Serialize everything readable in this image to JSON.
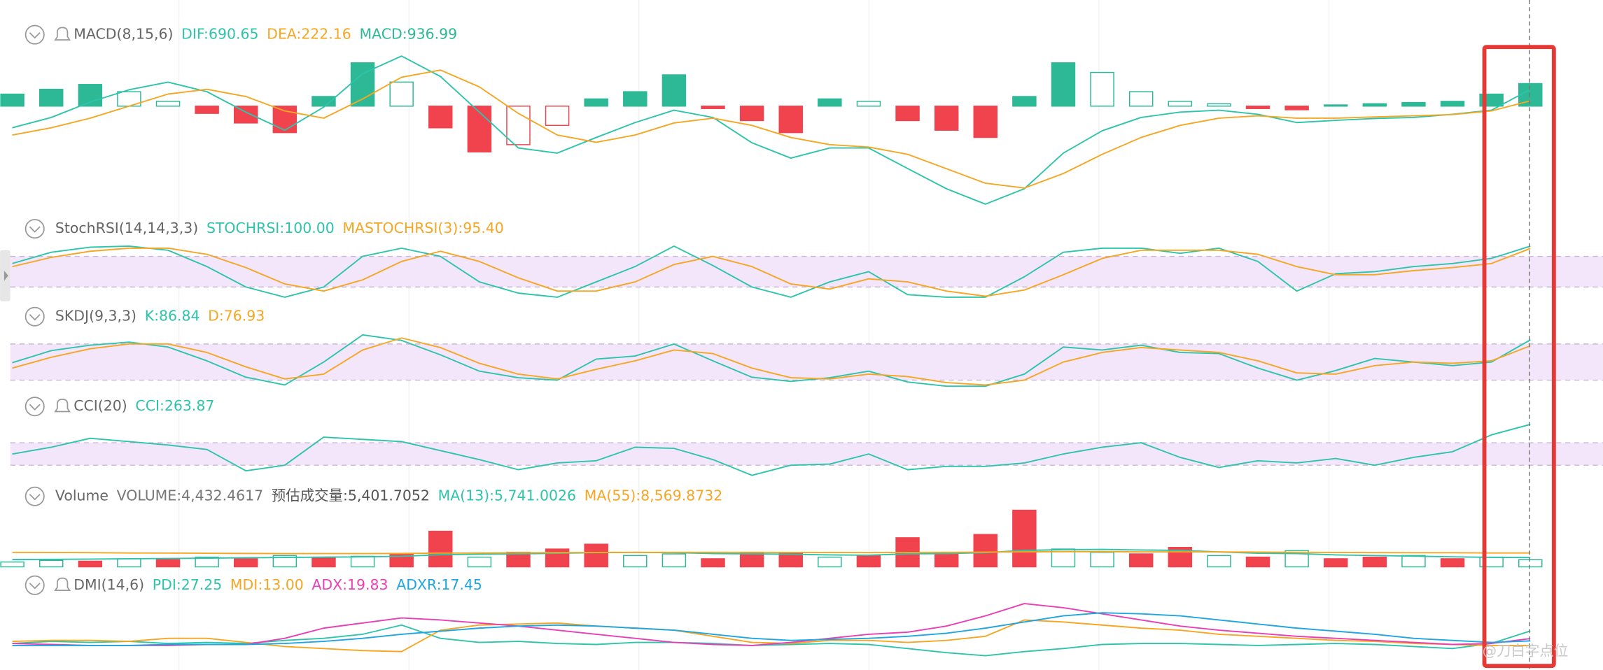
{
  "chart_data": [
    {
      "type": "combo",
      "title": "MACD(8,15,6)",
      "ylim": [
        -4500,
        2500
      ],
      "series": [
        {
          "name": "DIF:690.65",
          "color": "#2ec4ab",
          "values": [
            -900,
            -470,
            170,
            680,
            1000,
            600,
            -250,
            -1000,
            -40,
            1350,
            2080,
            1230,
            -250,
            -1740,
            -1950,
            -1300,
            -680,
            -170,
            -470,
            -1520,
            -2160,
            -1740,
            -1740,
            -2590,
            -3430,
            -4070,
            -3430,
            -1950,
            -1020,
            -470,
            -250,
            -170,
            -340,
            -680,
            -590,
            -510,
            -470,
            -340,
            -170,
            690.65
          ]
        },
        {
          "name": "DEA:222.16",
          "color": "#f5a623",
          "values": [
            -1200,
            -900,
            -500,
            0,
            500,
            700,
            400,
            -200,
            -500,
            300,
            1200,
            1500,
            800,
            -300,
            -1200,
            -1500,
            -1200,
            -700,
            -500,
            -800,
            -1300,
            -1600,
            -1700,
            -2000,
            -2600,
            -3200,
            -3400,
            -2800,
            -2000,
            -1300,
            -800,
            -500,
            -400,
            -500,
            -500,
            -450,
            -400,
            -350,
            -200,
            222.16
          ]
        },
        {
          "name": "MACD:936.99",
          "type": "bar",
          "color": "#2db896",
          "down_color": "#f0434e",
          "values": [
            500,
            700,
            900,
            600,
            200,
            -300,
            -700,
            -1100,
            400,
            1800,
            1000,
            -900,
            -1900,
            -1600,
            -800,
            300,
            600,
            1300,
            -100,
            -600,
            -1100,
            300,
            200,
            -600,
            -1000,
            -1300,
            400,
            1800,
            1400,
            600,
            200,
            100,
            -100,
            -150,
            50,
            100,
            150,
            200,
            500,
            936.99
          ]
        }
      ]
    },
    {
      "type": "line",
      "title": "StochRSI(14,14,3,3)",
      "ylim": [
        0,
        100
      ],
      "band": [
        20,
        80
      ],
      "series": [
        {
          "name": "STOCHRSI:100.00",
          "color": "#2ec4ab",
          "values": [
            66,
            88,
            98,
            100,
            92,
            60,
            20,
            0,
            20,
            80,
            96,
            80,
            30,
            8,
            0,
            30,
            60,
            100,
            62,
            20,
            0,
            30,
            50,
            5,
            0,
            0,
            40,
            88,
            96,
            96,
            86,
            96,
            70,
            12,
            46,
            50,
            60,
            66,
            76,
            100
          ]
        },
        {
          "name": "MASTOCHRSI(3):95.40",
          "color": "#f5a623",
          "values": [
            60,
            78,
            90,
            96,
            96,
            84,
            58,
            26,
            12,
            34,
            70,
            90,
            70,
            38,
            12,
            12,
            30,
            64,
            80,
            60,
            26,
            16,
            36,
            30,
            12,
            2,
            14,
            44,
            76,
            92,
            92,
            92,
            84,
            60,
            44,
            44,
            52,
            58,
            66,
            95.4
          ]
        }
      ]
    },
    {
      "type": "line",
      "title": "SKDJ(9,3,3)",
      "ylim": [
        0,
        100
      ],
      "band": [
        20,
        80
      ],
      "series": [
        {
          "name": "K:86.84",
          "color": "#2ec4ab",
          "values": [
            49,
            69,
            78,
            83,
            75,
            52,
            25,
            12,
            50,
            95,
            86,
            62,
            35,
            24,
            20,
            55,
            60,
            80,
            52,
            25,
            18,
            24,
            35,
            17,
            10,
            10,
            30,
            75,
            70,
            78,
            66,
            64,
            40,
            20,
            36,
            56,
            50,
            44,
            50,
            86.84
          ]
        },
        {
          "name": "D:76.93",
          "color": "#f5a623",
          "values": [
            40,
            58,
            72,
            80,
            80,
            66,
            42,
            22,
            30,
            70,
            90,
            74,
            48,
            30,
            22,
            38,
            52,
            70,
            64,
            40,
            24,
            22,
            30,
            26,
            16,
            12,
            20,
            50,
            66,
            74,
            70,
            66,
            52,
            32,
            30,
            44,
            50,
            48,
            52,
            76.93
          ]
        }
      ]
    },
    {
      "type": "line",
      "title": "CCI(20)",
      "ylim": [
        -250,
        350
      ],
      "band": [
        -100,
        100
      ],
      "series": [
        {
          "name": "CCI:263.87",
          "color": "#2ec4ab",
          "values": [
            0,
            60,
            140,
            110,
            80,
            40,
            -150,
            -100,
            150,
            130,
            110,
            30,
            -50,
            -140,
            -80,
            -60,
            60,
            50,
            -50,
            -190,
            -100,
            -90,
            0,
            -140,
            -110,
            -110,
            -80,
            0,
            60,
            100,
            -30,
            -120,
            -60,
            -80,
            -40,
            -100,
            -30,
            20,
            170,
            263.87
          ]
        }
      ]
    },
    {
      "type": "combo",
      "title": "Volume",
      "ylim": [
        0,
        36000
      ],
      "annotation": "预估成交量:5,401.7052",
      "hollow_color": "#2db896",
      "series": [
        {
          "name": "VOLUME:4,432.4617",
          "type": "bar",
          "values": [
            3000,
            4000,
            3500,
            5000,
            4500,
            6000,
            5000,
            7000,
            5500,
            6500,
            8000,
            22000,
            6000,
            9000,
            11000,
            14000,
            7000,
            8000,
            5000,
            9000,
            8500,
            6000,
            7000,
            18000,
            9000,
            20000,
            35000,
            11000,
            9000,
            8000,
            12000,
            7000,
            6000,
            10000,
            5000,
            6000,
            7000,
            5000,
            6000,
            4432.4617
          ],
          "colors": [
            "#2db896",
            "#2db896",
            "#f0434e",
            "#2db896",
            "#f0434e",
            "#2db896",
            "#f0434e",
            "#2db896",
            "#f0434e",
            "#2db896",
            "#f0434e",
            "#f0434e",
            "#2db896",
            "#f0434e",
            "#f0434e",
            "#f0434e",
            "#2db896",
            "#2db896",
            "#f0434e",
            "#f0434e",
            "#f0434e",
            "#2db896",
            "#f0434e",
            "#f0434e",
            "#f0434e",
            "#f0434e",
            "#f0434e",
            "#2db896",
            "#2db896",
            "#f0434e",
            "#f0434e",
            "#2db896",
            "#f0434e",
            "#2db896",
            "#f0434e",
            "#f0434e",
            "#2db896",
            "#f0434e",
            "#2db896",
            "#2db896"
          ]
        },
        {
          "name": "MA(13):5,741.0026",
          "color": "#2ec4ab",
          "values": [
            4500,
            4600,
            4800,
            5000,
            5200,
            5400,
            5600,
            5800,
            6000,
            6200,
            6500,
            7500,
            7800,
            8000,
            8400,
            8800,
            9000,
            8800,
            8200,
            8000,
            7800,
            7400,
            7200,
            8000,
            8200,
            8800,
            10200,
            10600,
            10800,
            10400,
            10200,
            9200,
            8400,
            8200,
            7400,
            7000,
            6600,
            6200,
            5900,
            5741.0026
          ]
        },
        {
          "name": "MA(55):8,569.8732",
          "color": "#f5a623",
          "values": [
            9000,
            8900,
            8800,
            8600,
            8500,
            8400,
            8300,
            8200,
            8200,
            8200,
            8300,
            8500,
            8600,
            8700,
            8800,
            8900,
            9000,
            9000,
            9000,
            9000,
            8900,
            8900,
            8800,
            8900,
            9000,
            9100,
            9300,
            9400,
            9400,
            9300,
            9300,
            9200,
            9100,
            9000,
            8900,
            8800,
            8700,
            8700,
            8600,
            8569.8732
          ]
        }
      ]
    },
    {
      "type": "line",
      "title": "DMI(14,6)",
      "ylim": [
        0,
        60
      ],
      "series": [
        {
          "name": "PDI:27.25",
          "color": "#2ec4ab",
          "values": [
            15,
            17,
            16,
            17,
            15,
            16,
            15,
            18,
            20,
            24,
            33,
            20,
            16,
            17,
            15,
            14,
            16,
            16,
            15,
            13,
            14,
            15,
            14,
            10,
            6,
            3,
            7,
            10,
            14,
            15,
            15,
            14,
            13,
            14,
            15,
            14,
            12,
            10,
            15,
            27.25
          ]
        },
        {
          "name": "MDI:13.00",
          "color": "#f5a623",
          "values": [
            17,
            18,
            18,
            17,
            20,
            20,
            16,
            12,
            10,
            8,
            7,
            28,
            33,
            34,
            35,
            32,
            30,
            28,
            22,
            16,
            15,
            18,
            18,
            16,
            18,
            22,
            38,
            36,
            33,
            30,
            28,
            24,
            22,
            20,
            18,
            17,
            15,
            14,
            13,
            13
          ]
        },
        {
          "name": "ADX:19.83",
          "color": "#e83fb5",
          "values": [
            15,
            14,
            13,
            13,
            13,
            14,
            14,
            20,
            30,
            35,
            40,
            38,
            35,
            32,
            28,
            24,
            20,
            16,
            14,
            13,
            16,
            20,
            24,
            26,
            32,
            42,
            54,
            50,
            44,
            38,
            32,
            28,
            25,
            22,
            20,
            18,
            16,
            14,
            15,
            19.83
          ]
        },
        {
          "name": "ADXR:17.45",
          "color": "#1fa5e0",
          "values": [
            13,
            13,
            13,
            13,
            14,
            14,
            14,
            15,
            17,
            20,
            24,
            27,
            30,
            32,
            33,
            32,
            30,
            28,
            24,
            20,
            18,
            19,
            20,
            22,
            25,
            30,
            36,
            42,
            45,
            44,
            42,
            38,
            34,
            30,
            27,
            24,
            20,
            18,
            16,
            17.45
          ]
        }
      ]
    }
  ],
  "watermark": "@刀白字点位"
}
